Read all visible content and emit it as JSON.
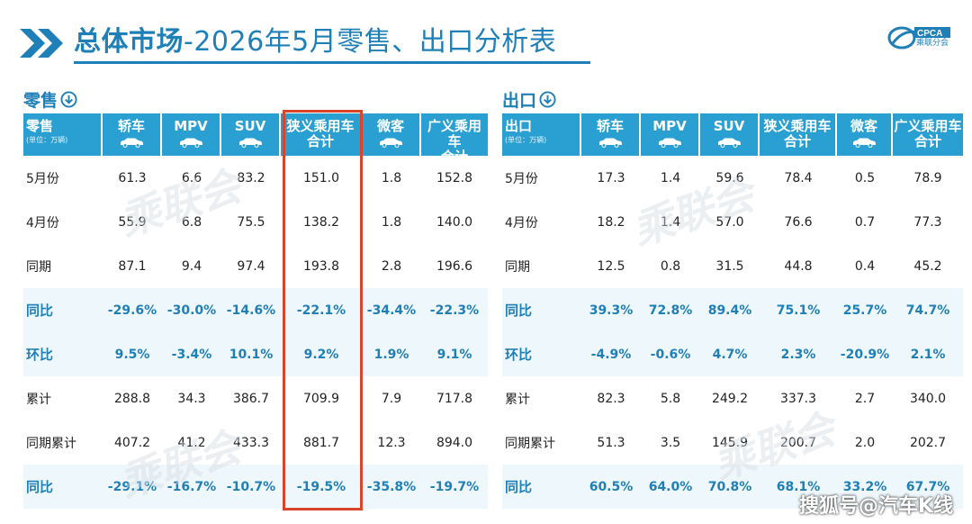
{
  "header": {
    "title_bold": "总体市场",
    "title_rest": "-2026年5月零售、出口分析表",
    "logo_text": "CPCA",
    "logo_subtext": "乘联分会"
  },
  "colors": {
    "accent": "#1f7fb7",
    "header_bg": "#2a9fd2",
    "highlight": "#d9452b",
    "alt_row": "#eef7fb"
  },
  "icons": [
    "chevron-right-icon",
    "arrow-down-circle-icon",
    "car-icon",
    "cpca-logo"
  ],
  "retail": {
    "section_label": "零售",
    "corner_label": "零售",
    "unit": "(单位：万辆)",
    "columns": [
      "轿车",
      "MPV",
      "SUV",
      "狭义乘用车合计",
      "微客",
      "广义乘用车合计"
    ],
    "rows": [
      {
        "label": "5月份",
        "values": [
          "61.3",
          "6.6",
          "83.2",
          "151.0",
          "1.8",
          "152.8"
        ]
      },
      {
        "label": "4月份",
        "values": [
          "55.9",
          "6.8",
          "75.5",
          "138.2",
          "1.8",
          "140.0"
        ]
      },
      {
        "label": "同期",
        "values": [
          "87.1",
          "9.4",
          "97.4",
          "193.8",
          "2.8",
          "196.6"
        ]
      },
      {
        "label": "同比",
        "values": [
          "-29.6%",
          "-30.0%",
          "-14.6%",
          "-22.1%",
          "-34.4%",
          "-22.3%"
        ]
      },
      {
        "label": "环比",
        "values": [
          "9.5%",
          "-3.4%",
          "10.1%",
          "9.2%",
          "1.9%",
          "9.1%"
        ]
      },
      {
        "label": "累计",
        "values": [
          "288.8",
          "34.3",
          "386.7",
          "709.9",
          "7.9",
          "717.8"
        ]
      },
      {
        "label": "同期累计",
        "values": [
          "407.2",
          "41.2",
          "433.3",
          "881.7",
          "12.3",
          "894.0"
        ]
      },
      {
        "label": "同比",
        "values": [
          "-29.1%",
          "-16.7%",
          "-10.7%",
          "-19.5%",
          "-35.8%",
          "-19.7%"
        ]
      }
    ]
  },
  "export": {
    "section_label": "出口",
    "corner_label": "出口",
    "unit": "(单位：万辆)",
    "columns": [
      "轿车",
      "MPV",
      "SUV",
      "狭义乘用车合计",
      "微客",
      "广义乘用车合计"
    ],
    "rows": [
      {
        "label": "5月份",
        "values": [
          "17.3",
          "1.4",
          "59.6",
          "78.4",
          "0.5",
          "78.9"
        ]
      },
      {
        "label": "4月份",
        "values": [
          "18.2",
          "1.4",
          "57.0",
          "76.6",
          "0.7",
          "77.3"
        ]
      },
      {
        "label": "同期",
        "values": [
          "12.5",
          "0.8",
          "31.5",
          "44.8",
          "0.4",
          "45.2"
        ]
      },
      {
        "label": "同比",
        "values": [
          "39.3%",
          "72.8%",
          "89.4%",
          "75.1%",
          "25.7%",
          "74.7%"
        ]
      },
      {
        "label": "环比",
        "values": [
          "-4.9%",
          "-0.6%",
          "4.7%",
          "2.3%",
          "-20.9%",
          "2.1%"
        ]
      },
      {
        "label": "累计",
        "values": [
          "82.3",
          "5.8",
          "249.2",
          "337.3",
          "2.7",
          "340.0"
        ]
      },
      {
        "label": "同期累计",
        "values": [
          "51.3",
          "3.5",
          "145.9",
          "200.7",
          "2.0",
          "202.7"
        ]
      },
      {
        "label": "同比",
        "values": [
          "60.5%",
          "64.0%",
          "70.8%",
          "68.1%",
          "33.2%",
          "67.7%"
        ]
      }
    ]
  },
  "footer": {
    "watermark": "搜狐号@汽车K线"
  }
}
